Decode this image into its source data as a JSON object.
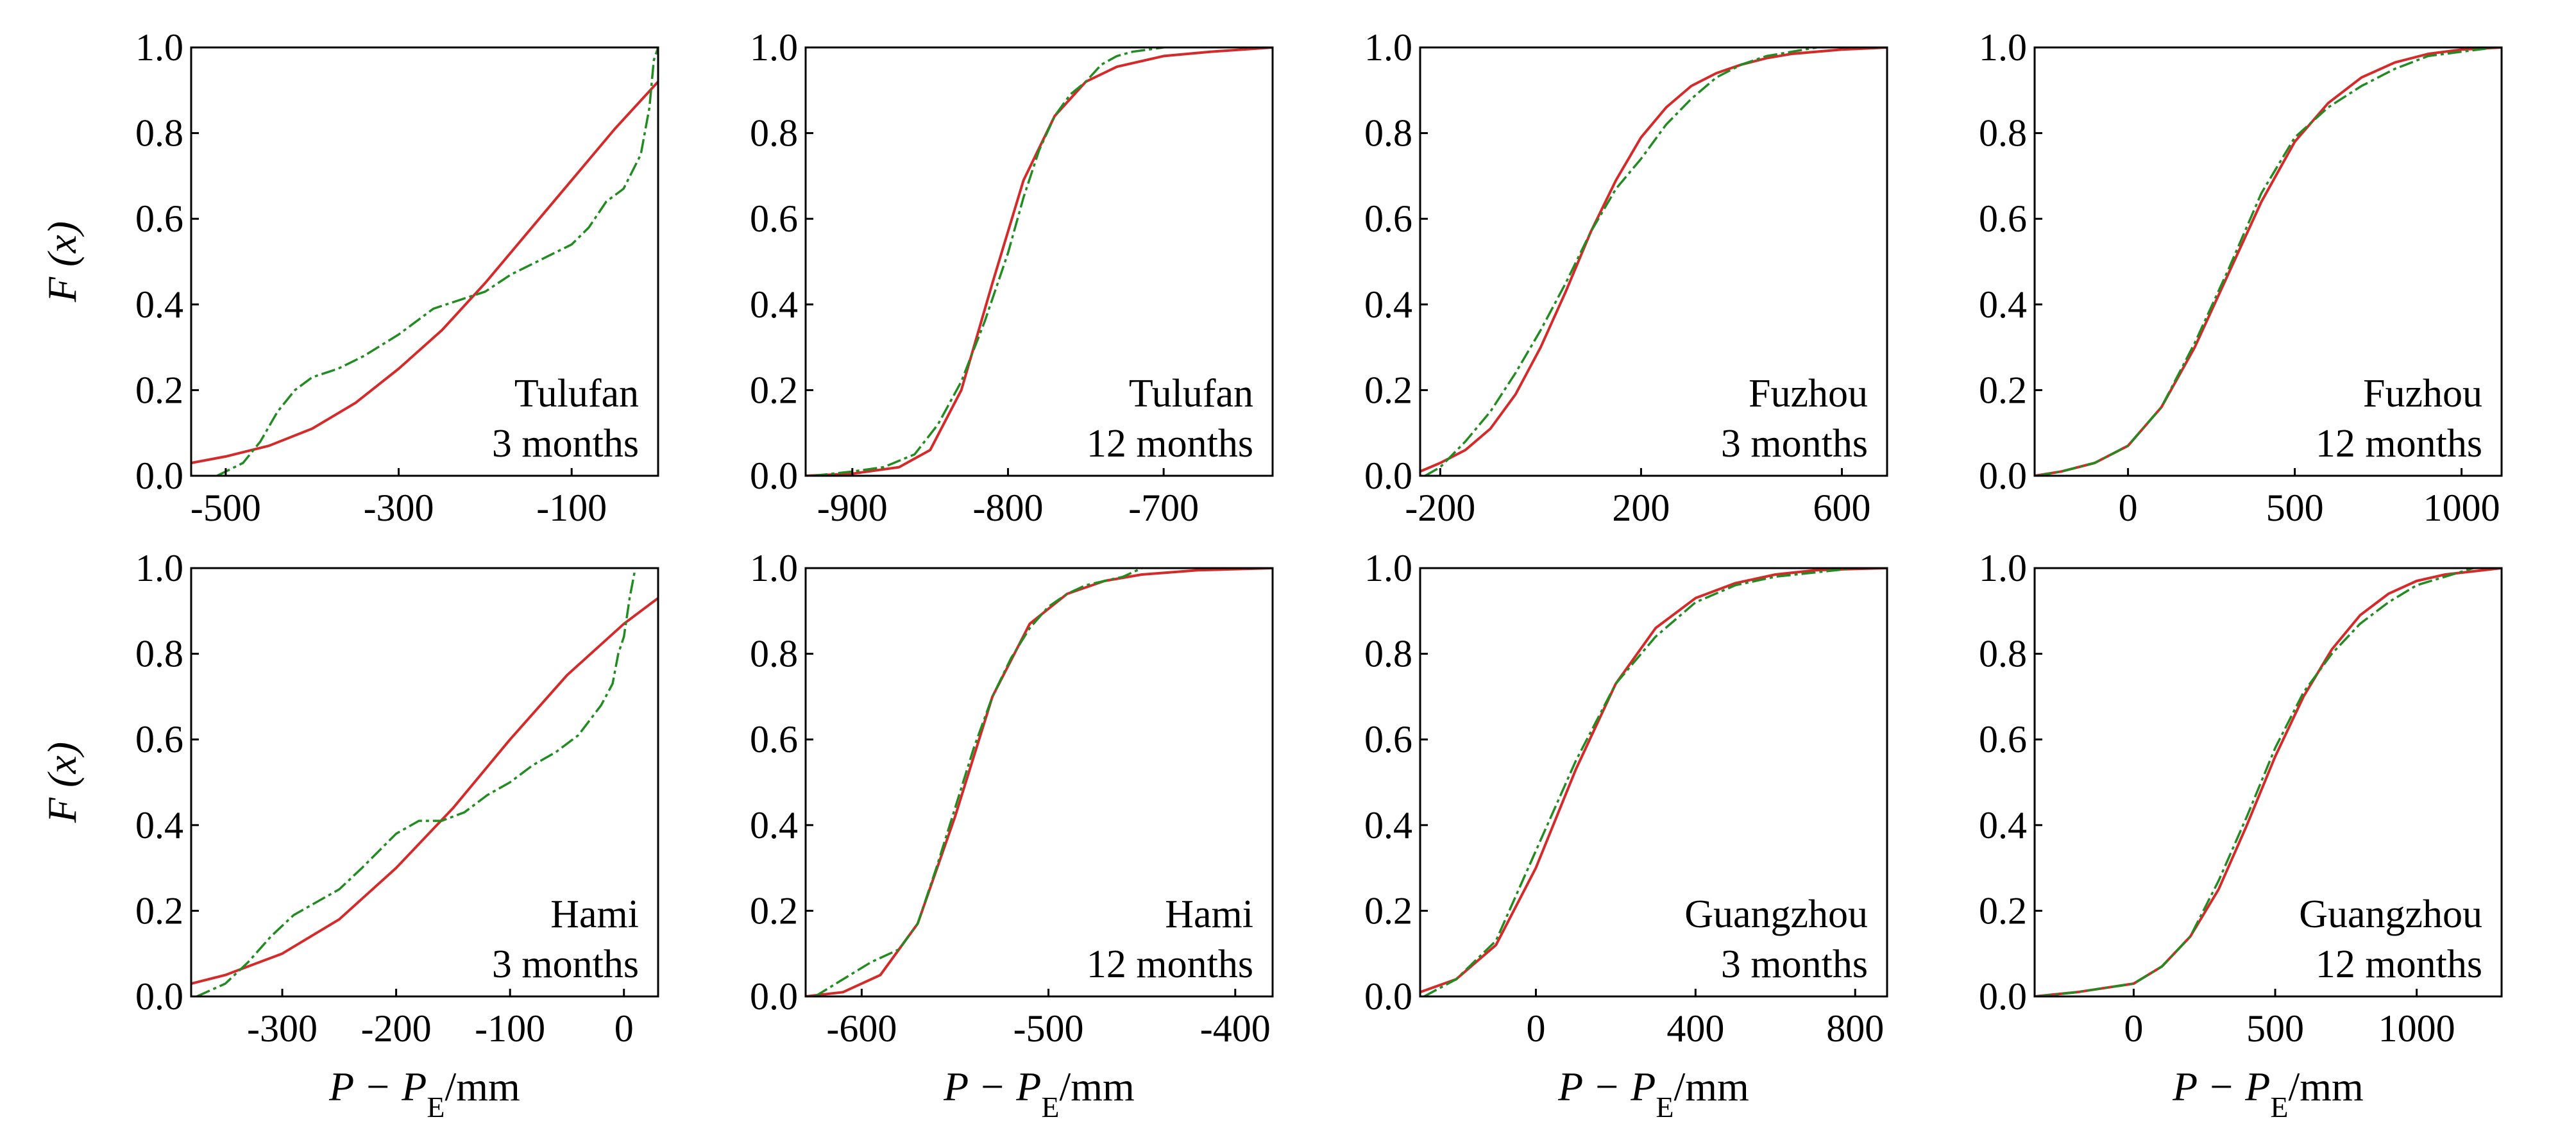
{
  "colors": {
    "theoretical": "#d42a2a",
    "empirical": "#228b22",
    "axis": "#000000"
  },
  "chart_data": [
    {
      "type": "line",
      "row": 0,
      "col": 0,
      "label_lines": [
        "Tulufan",
        "3 months"
      ],
      "xlim": [
        -540,
        0
      ],
      "ylim": [
        0,
        1
      ],
      "xticks": [
        -500,
        -300,
        -100
      ],
      "yticks": [
        0.0,
        0.2,
        0.4,
        0.6,
        0.8,
        1.0
      ],
      "ylabel": "F (x)",
      "xlabel": "",
      "series": [
        {
          "role": "theoretical",
          "style": "solid",
          "x": [
            -540,
            -500,
            -450,
            -400,
            -350,
            -300,
            -250,
            -200,
            -150,
            -100,
            -50,
            0
          ],
          "y": [
            0.03,
            0.045,
            0.07,
            0.11,
            0.17,
            0.25,
            0.34,
            0.45,
            0.57,
            0.69,
            0.81,
            0.92
          ]
        },
        {
          "role": "empirical",
          "style": "dashdot",
          "x": [
            -510,
            -480,
            -460,
            -440,
            -420,
            -400,
            -370,
            -340,
            -300,
            -260,
            -230,
            -200,
            -170,
            -140,
            -120,
            -100,
            -80,
            -60,
            -40,
            -20,
            -10,
            -5,
            0
          ],
          "y": [
            0.0,
            0.03,
            0.08,
            0.15,
            0.2,
            0.23,
            0.25,
            0.28,
            0.33,
            0.39,
            0.41,
            0.43,
            0.47,
            0.5,
            0.52,
            0.54,
            0.58,
            0.64,
            0.67,
            0.75,
            0.86,
            0.97,
            1.0
          ]
        }
      ]
    },
    {
      "type": "line",
      "row": 0,
      "col": 1,
      "label_lines": [
        "Tulufan",
        "12 months"
      ],
      "xlim": [
        -930,
        -630
      ],
      "ylim": [
        0,
        1
      ],
      "xticks": [
        -900,
        -800,
        -700
      ],
      "yticks": [
        0.0,
        0.2,
        0.4,
        0.6,
        0.8,
        1.0
      ],
      "ylabel": "",
      "xlabel": "",
      "series": [
        {
          "role": "theoretical",
          "style": "solid",
          "x": [
            -930,
            -900,
            -870,
            -850,
            -830,
            -810,
            -790,
            -770,
            -750,
            -730,
            -700,
            -670,
            -630
          ],
          "y": [
            0.0,
            0.005,
            0.02,
            0.06,
            0.2,
            0.45,
            0.69,
            0.84,
            0.92,
            0.955,
            0.98,
            0.99,
            1.0
          ]
        },
        {
          "role": "empirical",
          "style": "dashdot",
          "x": [
            -925,
            -900,
            -880,
            -860,
            -845,
            -830,
            -815,
            -800,
            -790,
            -780,
            -770,
            -760,
            -750,
            -740,
            -730,
            -720,
            -700
          ],
          "y": [
            0.0,
            0.01,
            0.02,
            0.05,
            0.12,
            0.22,
            0.36,
            0.52,
            0.65,
            0.76,
            0.84,
            0.89,
            0.92,
            0.96,
            0.98,
            0.99,
            1.0
          ]
        }
      ]
    },
    {
      "type": "line",
      "row": 0,
      "col": 2,
      "label_lines": [
        "Fuzhou",
        "3 months"
      ],
      "xlim": [
        -240,
        690
      ],
      "ylim": [
        0,
        1
      ],
      "xticks": [
        -200,
        200,
        600
      ],
      "yticks": [
        0.0,
        0.2,
        0.4,
        0.6,
        0.8,
        1.0
      ],
      "ylabel": "",
      "xlabel": "",
      "series": [
        {
          "role": "theoretical",
          "style": "solid",
          "x": [
            -240,
            -200,
            -150,
            -100,
            -50,
            0,
            50,
            100,
            150,
            200,
            250,
            300,
            350,
            400,
            450,
            500,
            600,
            690
          ],
          "y": [
            0.01,
            0.03,
            0.06,
            0.11,
            0.19,
            0.3,
            0.43,
            0.57,
            0.69,
            0.79,
            0.86,
            0.91,
            0.94,
            0.96,
            0.975,
            0.985,
            0.995,
            1.0
          ]
        },
        {
          "role": "empirical",
          "style": "dashdot",
          "x": [
            -230,
            -200,
            -150,
            -100,
            -50,
            0,
            50,
            100,
            150,
            200,
            250,
            300,
            350,
            400,
            450,
            500,
            550
          ],
          "y": [
            0.0,
            0.02,
            0.08,
            0.15,
            0.24,
            0.34,
            0.45,
            0.57,
            0.67,
            0.74,
            0.82,
            0.88,
            0.93,
            0.96,
            0.98,
            0.99,
            1.0
          ]
        }
      ]
    },
    {
      "type": "line",
      "row": 0,
      "col": 3,
      "label_lines": [
        "Fuzhou",
        "12 months"
      ],
      "xlim": [
        -280,
        1120
      ],
      "ylim": [
        0,
        1
      ],
      "xticks": [
        0,
        500,
        1000
      ],
      "yticks": [
        0.0,
        0.2,
        0.4,
        0.6,
        0.8,
        1.0
      ],
      "ylabel": "",
      "xlabel": "",
      "series": [
        {
          "role": "theoretical",
          "style": "solid",
          "x": [
            -280,
            -200,
            -100,
            0,
            100,
            200,
            300,
            400,
            500,
            600,
            700,
            800,
            900,
            1000,
            1120
          ],
          "y": [
            0.0,
            0.01,
            0.03,
            0.07,
            0.16,
            0.3,
            0.47,
            0.64,
            0.78,
            0.87,
            0.93,
            0.965,
            0.985,
            0.995,
            1.0
          ]
        },
        {
          "role": "empirical",
          "style": "dashdot",
          "x": [
            -270,
            -200,
            -100,
            0,
            100,
            200,
            300,
            400,
            500,
            600,
            700,
            800,
            900,
            1000,
            1100
          ],
          "y": [
            0.0,
            0.01,
            0.03,
            0.07,
            0.16,
            0.31,
            0.48,
            0.66,
            0.79,
            0.86,
            0.91,
            0.95,
            0.98,
            0.99,
            1.0
          ]
        }
      ]
    },
    {
      "type": "line",
      "row": 1,
      "col": 0,
      "label_lines": [
        "Hami",
        "3 months"
      ],
      "xlim": [
        -380,
        30
      ],
      "ylim": [
        0,
        1
      ],
      "xticks": [
        -300,
        -200,
        -100,
        0
      ],
      "yticks": [
        0.0,
        0.2,
        0.4,
        0.6,
        0.8,
        1.0
      ],
      "ylabel": "F (x)",
      "xlabel": "P − P_E/mm",
      "series": [
        {
          "role": "theoretical",
          "style": "solid",
          "x": [
            -380,
            -350,
            -300,
            -250,
            -200,
            -150,
            -100,
            -50,
            0,
            30
          ],
          "y": [
            0.03,
            0.05,
            0.1,
            0.18,
            0.3,
            0.44,
            0.6,
            0.75,
            0.87,
            0.93
          ]
        },
        {
          "role": "empirical",
          "style": "dashdot",
          "x": [
            -375,
            -350,
            -330,
            -310,
            -290,
            -270,
            -250,
            -230,
            -200,
            -180,
            -160,
            -140,
            -120,
            -100,
            -80,
            -60,
            -40,
            -20,
            -10,
            -5,
            0,
            5,
            10
          ],
          "y": [
            0.0,
            0.03,
            0.08,
            0.14,
            0.19,
            0.22,
            0.25,
            0.3,
            0.38,
            0.41,
            0.41,
            0.43,
            0.47,
            0.5,
            0.54,
            0.57,
            0.61,
            0.68,
            0.73,
            0.8,
            0.84,
            0.93,
            1.0
          ]
        }
      ]
    },
    {
      "type": "line",
      "row": 1,
      "col": 1,
      "label_lines": [
        "Hami",
        "12 months"
      ],
      "xlim": [
        -630,
        -380
      ],
      "ylim": [
        0,
        1
      ],
      "xticks": [
        -600,
        -500,
        -400
      ],
      "yticks": [
        0.0,
        0.2,
        0.4,
        0.6,
        0.8,
        1.0
      ],
      "ylabel": "",
      "xlabel": "P − P_E/mm",
      "series": [
        {
          "role": "theoretical",
          "style": "solid",
          "x": [
            -630,
            -610,
            -590,
            -570,
            -550,
            -530,
            -510,
            -490,
            -470,
            -450,
            -420,
            -380
          ],
          "y": [
            0.0,
            0.01,
            0.05,
            0.17,
            0.42,
            0.7,
            0.87,
            0.94,
            0.97,
            0.985,
            0.995,
            1.0
          ]
        },
        {
          "role": "empirical",
          "style": "dashdot",
          "x": [
            -625,
            -610,
            -595,
            -580,
            -570,
            -560,
            -550,
            -540,
            -530,
            -520,
            -510,
            -500,
            -490,
            -480,
            -470,
            -460,
            -450
          ],
          "y": [
            0.0,
            0.04,
            0.08,
            0.11,
            0.17,
            0.3,
            0.44,
            0.58,
            0.7,
            0.79,
            0.86,
            0.91,
            0.94,
            0.96,
            0.97,
            0.98,
            1.0
          ]
        }
      ]
    },
    {
      "type": "line",
      "row": 1,
      "col": 2,
      "label_lines": [
        "Guangzhou",
        "3 months"
      ],
      "xlim": [
        -290,
        880
      ],
      "ylim": [
        0,
        1
      ],
      "xticks": [
        0,
        400,
        800
      ],
      "yticks": [
        0.0,
        0.2,
        0.4,
        0.6,
        0.8,
        1.0
      ],
      "ylabel": "",
      "xlabel": "P − P_E/mm",
      "series": [
        {
          "role": "theoretical",
          "style": "solid",
          "x": [
            -290,
            -200,
            -100,
            0,
            100,
            200,
            300,
            400,
            500,
            600,
            700,
            800,
            880
          ],
          "y": [
            0.01,
            0.04,
            0.12,
            0.3,
            0.53,
            0.73,
            0.86,
            0.93,
            0.965,
            0.985,
            0.995,
            0.998,
            1.0
          ]
        },
        {
          "role": "empirical",
          "style": "dashdot",
          "x": [
            -280,
            -200,
            -100,
            0,
            100,
            200,
            300,
            400,
            500,
            600,
            700,
            800
          ],
          "y": [
            0.0,
            0.04,
            0.13,
            0.34,
            0.55,
            0.73,
            0.84,
            0.92,
            0.96,
            0.98,
            0.99,
            1.0
          ]
        }
      ]
    },
    {
      "type": "line",
      "row": 1,
      "col": 3,
      "label_lines": [
        "Guangzhou",
        "12 months"
      ],
      "xlim": [
        -350,
        1300
      ],
      "ylim": [
        0,
        1
      ],
      "xticks": [
        0,
        500,
        1000
      ],
      "yticks": [
        0.0,
        0.2,
        0.4,
        0.6,
        0.8,
        1.0
      ],
      "ylabel": "",
      "xlabel": "P − P_E/mm",
      "series": [
        {
          "role": "theoretical",
          "style": "solid",
          "x": [
            -350,
            -200,
            0,
            100,
            200,
            300,
            400,
            500,
            600,
            700,
            800,
            900,
            1000,
            1100,
            1300
          ],
          "y": [
            0.0,
            0.01,
            0.03,
            0.07,
            0.14,
            0.25,
            0.4,
            0.56,
            0.7,
            0.81,
            0.89,
            0.94,
            0.97,
            0.985,
            1.0
          ]
        },
        {
          "role": "empirical",
          "style": "dashdot",
          "x": [
            -340,
            -200,
            0,
            100,
            200,
            300,
            400,
            500,
            600,
            700,
            800,
            900,
            1000,
            1100,
            1200
          ],
          "y": [
            0.0,
            0.01,
            0.03,
            0.07,
            0.14,
            0.27,
            0.42,
            0.58,
            0.71,
            0.8,
            0.87,
            0.92,
            0.96,
            0.98,
            1.0
          ]
        }
      ]
    }
  ]
}
